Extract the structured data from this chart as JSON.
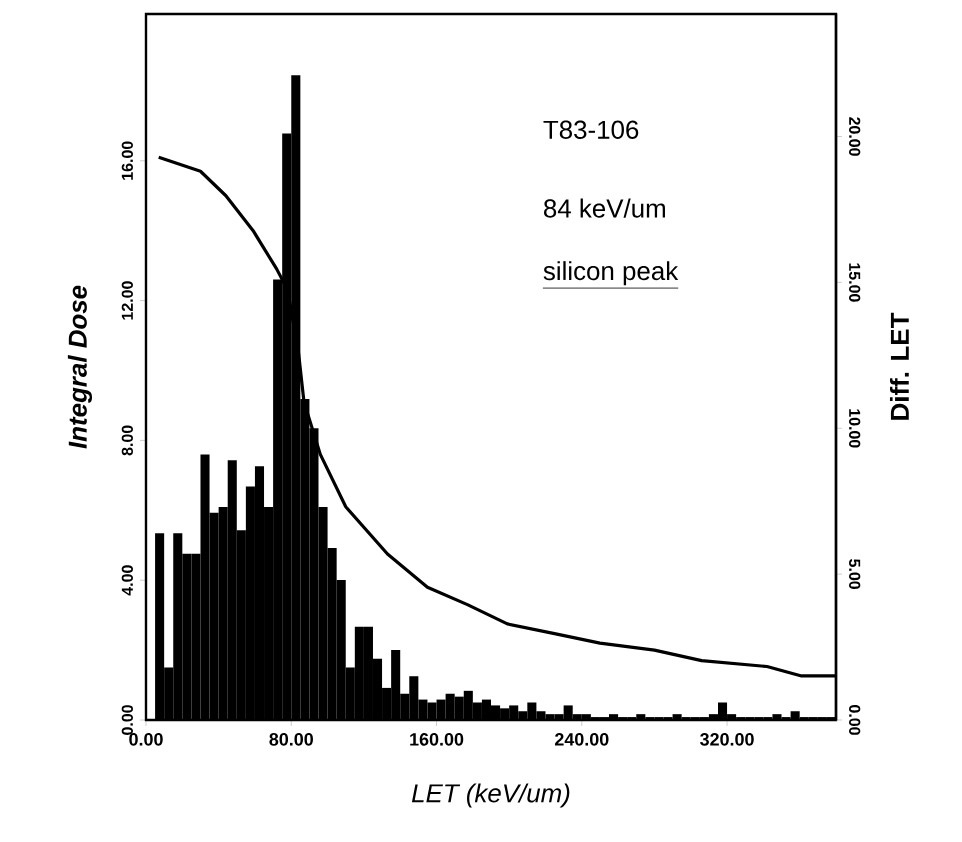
{
  "chart_data": {
    "type": "line",
    "xlabel": "LET (keV/um)",
    "ylabel": "Integral Dose",
    "y2label": "Diff. LET",
    "xlim": [
      0,
      380
    ],
    "ylim": [
      0,
      20.2
    ],
    "y2lim": [
      0,
      24.2
    ],
    "xticks": [
      {
        "value": 0,
        "label": "0.00"
      },
      {
        "value": 80,
        "label": "80.00"
      },
      {
        "value": 160,
        "label": "160.00"
      },
      {
        "value": 240,
        "label": "240.00"
      },
      {
        "value": 320,
        "label": "320.00"
      }
    ],
    "yticks": [
      {
        "value": 0,
        "label": "0.00"
      },
      {
        "value": 4,
        "label": "4.00"
      },
      {
        "value": 8,
        "label": "8.00"
      },
      {
        "value": 12,
        "label": "12.00"
      },
      {
        "value": 16,
        "label": "16.00"
      }
    ],
    "y2ticks": [
      {
        "value": 0,
        "label": "0.00"
      },
      {
        "value": 5,
        "label": "5.00"
      },
      {
        "value": 10,
        "label": "10.00"
      },
      {
        "value": 15,
        "label": "15.00"
      },
      {
        "value": 20,
        "label": "20.00"
      }
    ],
    "annotations": [
      "T83-106",
      "84 keV/um",
      "silicon peak"
    ],
    "series": [
      {
        "type": "histogram",
        "axis": "y2",
        "color": "#000000",
        "bins": [
          5,
          10,
          15,
          20,
          25,
          30,
          35,
          40,
          45,
          50,
          55,
          60,
          65,
          70,
          75,
          80,
          85,
          90,
          95,
          100,
          105,
          110,
          115,
          120,
          125,
          130,
          135,
          140,
          145,
          150,
          155,
          160,
          165,
          170,
          175,
          180,
          185,
          190,
          195,
          200,
          205,
          210,
          215,
          220,
          225,
          230,
          235,
          240,
          245,
          250,
          255,
          260,
          265,
          270,
          275,
          280,
          285,
          290,
          295,
          300,
          305,
          310,
          315,
          320,
          325,
          330,
          335,
          340,
          345,
          350,
          355,
          360,
          365,
          370,
          375,
          380
        ],
        "values": [
          6.4,
          1.8,
          6.4,
          5.7,
          5.7,
          9.1,
          7.1,
          7.3,
          8.9,
          6.5,
          8.0,
          8.7,
          7.3,
          15.1,
          20.1,
          22.1,
          11.0,
          10.0,
          7.3,
          5.9,
          4.8,
          1.8,
          3.2,
          3.2,
          2.1,
          1.1,
          2.4,
          0.9,
          1.5,
          0.7,
          0.6,
          0.7,
          0.9,
          0.8,
          1.0,
          0.6,
          0.7,
          0.5,
          0.4,
          0.5,
          0.3,
          0.6,
          0.3,
          0.2,
          0.2,
          0.5,
          0.2,
          0.2,
          0.1,
          0.1,
          0.2,
          0.1,
          0.1,
          0.2,
          0.1,
          0.1,
          0.1,
          0.2,
          0.1,
          0.1,
          0.1,
          0.2,
          0.6,
          0.2,
          0.1,
          0.1,
          0.1,
          0.1,
          0.2,
          0.1,
          0.3,
          0.1,
          0.1,
          0.1,
          0.1
        ]
      },
      {
        "color": "#000000",
        "x": [
          7,
          30,
          44,
          59,
          72,
          78,
          84,
          87,
          96,
          110,
          133,
          155,
          177,
          199,
          225,
          250,
          280,
          306,
          342,
          361,
          380
        ],
        "values": [
          16.1,
          15.7,
          15.0,
          14.0,
          12.9,
          12.3,
          10.5,
          9.1,
          7.6,
          6.1,
          4.75,
          3.8,
          3.3,
          2.75,
          2.47,
          2.2,
          2.0,
          1.7,
          1.53,
          1.26,
          1.26
        ]
      }
    ]
  }
}
